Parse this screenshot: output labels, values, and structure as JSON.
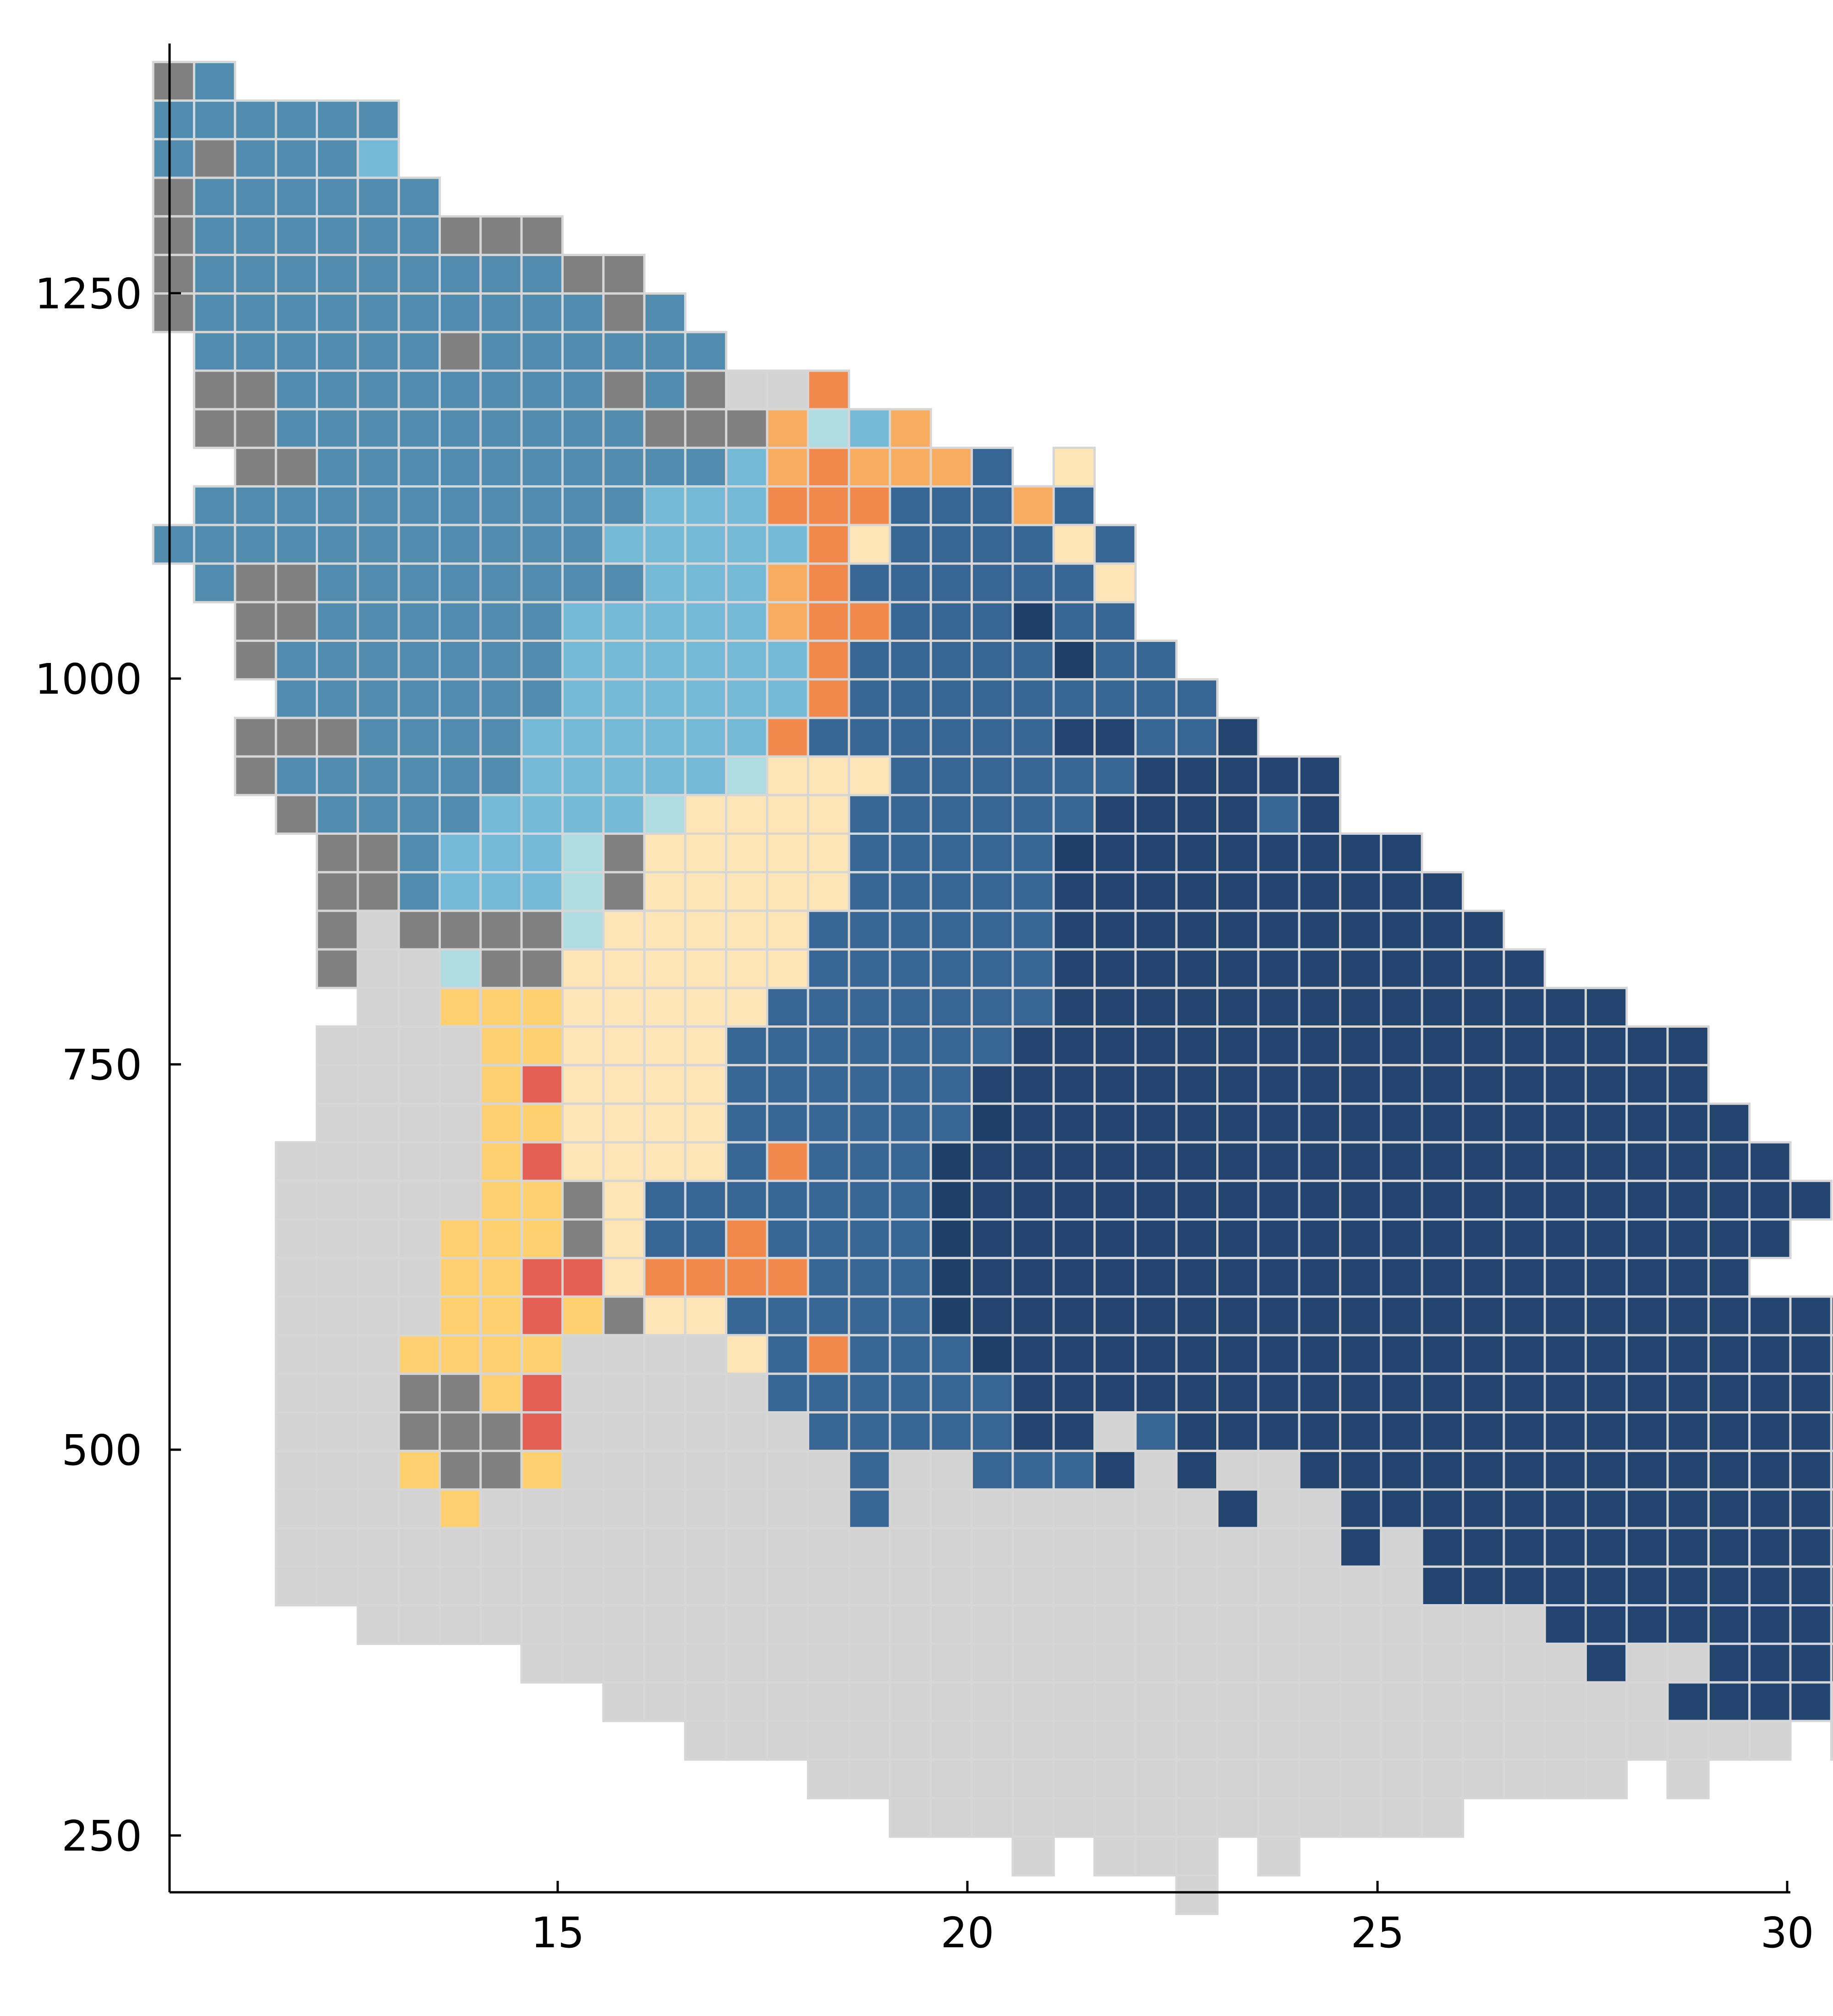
{
  "chart_data": {
    "type": "heatmap",
    "title": "",
    "xlabel": "",
    "ylabel": "",
    "xlim": [
      10.2,
      30
    ],
    "ylim": [
      214,
      1412
    ],
    "x_ticks": [
      "15",
      "20",
      "25",
      "30"
    ],
    "y_ticks": [
      "250",
      "500",
      "750",
      "1000",
      "1250"
    ],
    "grid": false,
    "legend": "none",
    "cell_x_start": 10.25,
    "cell_x_step": 0.5,
    "cell_y_top": 1387.5,
    "cell_y_step": 25,
    "palette": {
      "a": "#808080",
      "b": "#518cae",
      "c": "#74bad6",
      "d": "#aedce0",
      "e": "#d3d3d3",
      "f": "#f0894b",
      "g": "#f7ac5f",
      "h": "#fde5b8",
      "i": "#fed06f",
      "j": "#e46054",
      "k": "#376694",
      "l": "#22446e",
      "m": "#1e3f68"
    },
    "rows": [
      "ab..",
      "bbbbbb",
      "babbbc",
      "abbbbbb",
      "abbbbbbaaa",
      "abbbbbbbbbaa",
      "abbbbbbbbbbab",
      ".bbbbbbabbbbbb",
      ".aabbbbbbbbabaeef",
      ".aabbbbbbbbbaaagdcg",
      "..aabbbbbbbbbbcgfgggk.h",
      ".bbbbbbbbbbbcccfffkkkgk",
      "bbbbbbbbbbbcccccfhkkkkhk",
      ".baabbbbbbbbcccgfkkkkkkh",
      "..aabbbbbbcccccgffkkkmkk",
      "..abbbbbbbccccccfkkkkkmkk",
      "...bbbbbbbccccccfkkkkkkkkk",
      "..aaabbbbccccccfkkkkkkllkkl",
      "..abbbbbbcccccdhhhkkkkkklllll",
      "...abbbbccccdhhhhkkkkkkllllkl",
      "....aabcccdahhhhhkkkkkmllllllll",
      "....aabcccdahhhhhkkkkkllllllllll",
      "....aeaaaadhhhhhkkkkkklllllllllll",
      "....aeedaahhhhhhkkkkkkllllllllllll",
      ".....eeiiihhhhhkkkkkkkllllllllllllll",
      "....eeeeiihhhhkkkkkkklllllllllllllllll",
      "....eeeeijhhhhkkkkkkllllllllllllllllll",
      "....eeeeiihhhhkkkkkkmllllllllllllllllll",
      "...eeeeeijhhhhkfkkkmllllllllllllllllllll",
      "...eeeeeiiahkkkkkkkmlllllllllllllllllllll",
      "...eeeeiiiahkkfkkkkmllllllllllllllllllll",
      "...eeeeiijjhffffkkkmlllllllllllllllllll",
      "...eeeeiijiahhkkkkkmllllllllllllllllllllll",
      "...eeeiiiieeeehkfkkkmllllllllllllllllllllll",
      "...eeeaaijeeeeekkkkkklllllllllllllllllllllll",
      "...eeeaaajeeeeeekkkkklleklllllllllllllllllll",
      "...eeeiaaieeeeeeekeekkkleleellllllllllllllll",
      "...eeeeieeeeeeeeekeeeeeeeeleelllllllllllllllll",
      "...eeeeeeeeeeeeeeeeeeeeeeeeeelellllllllllllllll",
      "...eeeeeeeeeeeeeeeeeeeeeeeeeeeellllllllllllllll",
      ".....eeeeeeeeeeeeeeeeeeeeeeeeeeeeelllllllllllll",
      ".........eeeeeeeeeeeeeeeeeeeeeeeeeeleellllllll",
      "...........eeeeeeeeeeeeeeeeeeeeeeeeeelllleelll",
      ".............eeeeeeeeeeeeeeeeeeeeeeeeeee.ee",
      "................eeeeeeeeeeeeeeeeeeee.e",
      "..................eeeeeeeeeeeeee.",
      ".....................e.eee.e",
      ".........................e"
    ]
  }
}
